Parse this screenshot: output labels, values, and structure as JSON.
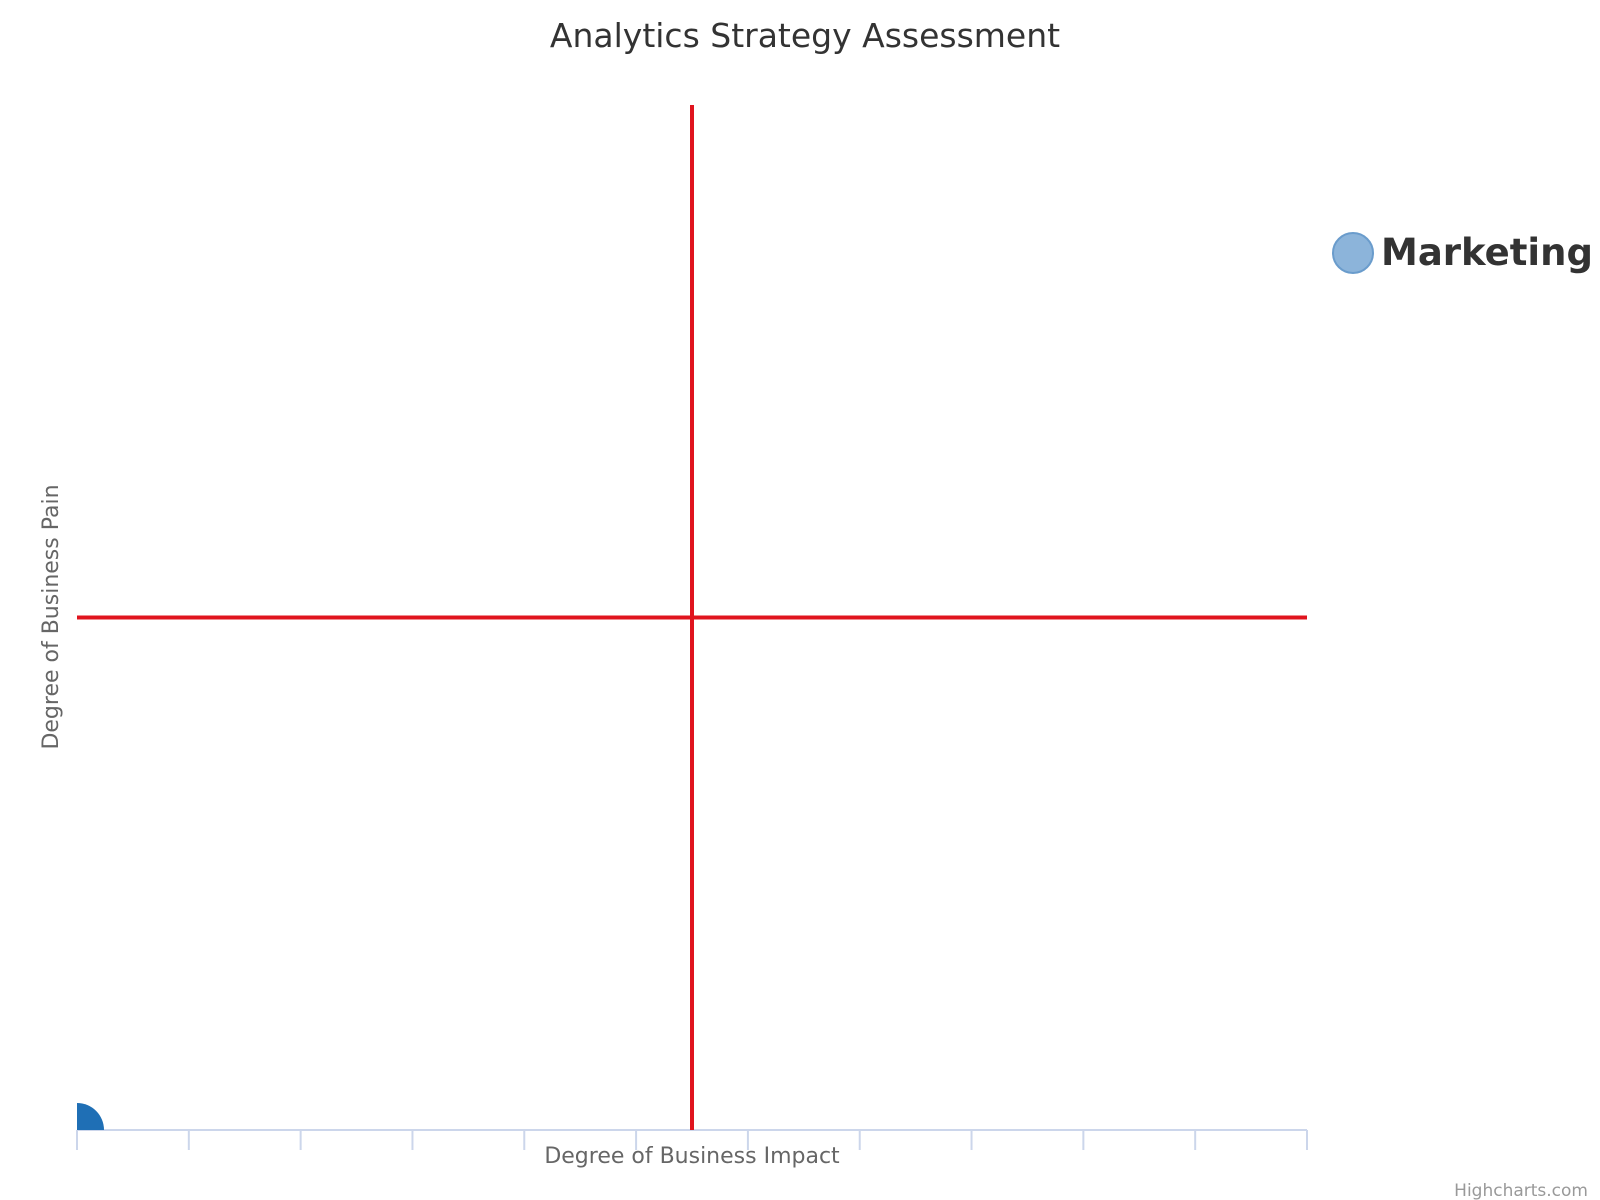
{
  "chart_data": {
    "type": "scatter",
    "title": "Analytics Strategy Assessment",
    "xlabel": "Degree of Business Impact",
    "ylabel": "Degree of Business Pain",
    "xlim": [
      0,
      11
    ],
    "ylim": [
      0,
      10
    ],
    "x_ticks": [
      0,
      1,
      2,
      3,
      4,
      5,
      6,
      7,
      8,
      9,
      10,
      11
    ],
    "show_tick_labels": false,
    "grid": false,
    "legend_position": "right",
    "reference_lines": [
      {
        "axis": "x",
        "value": 5.5,
        "color": "#e0141e"
      },
      {
        "axis": "y",
        "value": 5,
        "color": "#e0141e"
      }
    ],
    "series": [
      {
        "name": "Marketing",
        "color": "#1f6fb5",
        "legend_color": "#8cb4da",
        "points": [
          [
            0,
            0
          ]
        ]
      }
    ],
    "credits": "Highcharts.com"
  }
}
